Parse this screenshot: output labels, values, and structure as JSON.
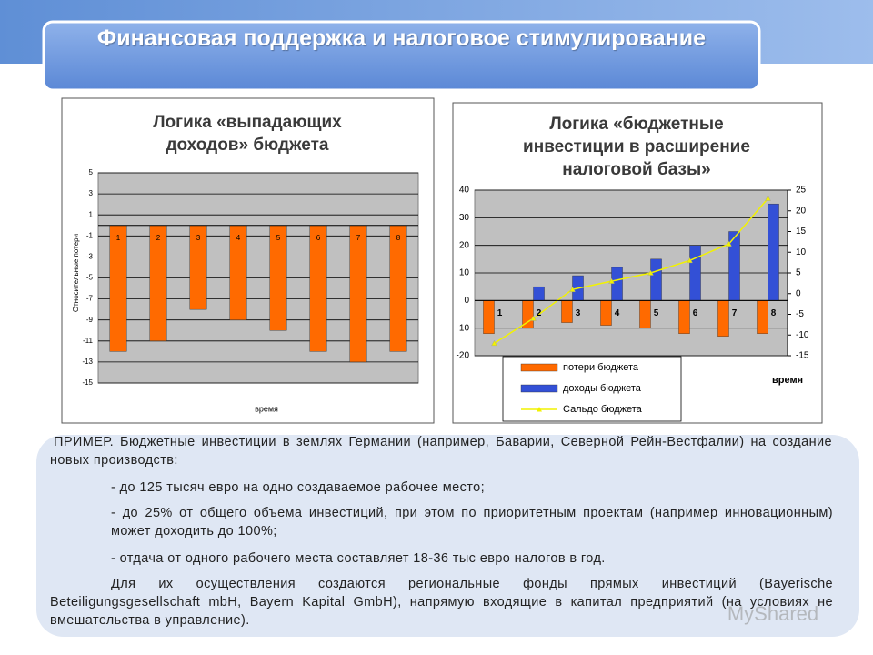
{
  "header": {
    "title": "Финансовая поддержка и налоговое стимулирование"
  },
  "chart_data": [
    {
      "type": "bar",
      "title": "Логика «выпадающих доходов» бюджета",
      "y_label": "Относительные потери",
      "x_label": "время",
      "categories": [
        "1",
        "2",
        "3",
        "4",
        "5",
        "6",
        "7",
        "8"
      ],
      "values": [
        -12,
        -11,
        -8,
        -9,
        -10,
        -12,
        -13,
        -12
      ],
      "color": "#ff6a00",
      "ylim": [
        -15,
        5
      ],
      "yticks": [
        -15,
        -13,
        -11,
        -9,
        -7,
        -5,
        -3,
        -1,
        1,
        3,
        5
      ],
      "grid": true
    },
    {
      "type": "bar",
      "title": "Логика «бюджетные инвестиции в расширение налоговой базы»",
      "x_label": "время",
      "categories": [
        "1",
        "2",
        "3",
        "4",
        "5",
        "6",
        "7",
        "8"
      ],
      "series": [
        {
          "name": "потери бюджета",
          "type": "bar",
          "color": "#ff6a00",
          "values": [
            -12,
            -10,
            -8,
            -9,
            -10,
            -12,
            -13,
            -12
          ]
        },
        {
          "name": "доходы бюджета",
          "type": "bar",
          "color": "#3350d6",
          "values": [
            0,
            5,
            9,
            12,
            15,
            20,
            25,
            35
          ]
        },
        {
          "name": "Сальдо бюджета",
          "type": "line",
          "axis": "y2",
          "color": "#f2f200",
          "values": [
            -12,
            -6,
            1,
            3,
            5,
            8,
            12,
            23
          ]
        }
      ],
      "ylim": [
        -20,
        40
      ],
      "yticks": [
        -20,
        -10,
        0,
        10,
        20,
        30,
        40
      ],
      "y2lim": [
        -15,
        25
      ],
      "y2ticks": [
        -15,
        -10,
        -5,
        0,
        5,
        10,
        15,
        20,
        25
      ],
      "grid": true,
      "legend": "bottom"
    }
  ],
  "text": {
    "intro": "ПРИМЕР. Бюджетные инвестиции в землях Германии (например, Баварии, Северной Рейн-Вестфалии)  на создание новых производств:",
    "bullets": [
      "- до 125 тысяч евро на одно создаваемое рабочее место;",
      "- до 25% от общего объема инвестиций, при этом по приоритетным проектам (например инновационным) может доходить до 100%;",
      "- отдача от одного рабочего места составляет 18-36 тыс евро налогов в год."
    ],
    "closing": "Для их осуществления создаются региональные фонды прямых инвестиций (Bayerische Beteiligungsgesellschaft mbH, Bayern Kapital GmbH), напрямую входящие в капитал предприятий (на условиях не вмешательства в управление)."
  },
  "watermark": "MyShared"
}
